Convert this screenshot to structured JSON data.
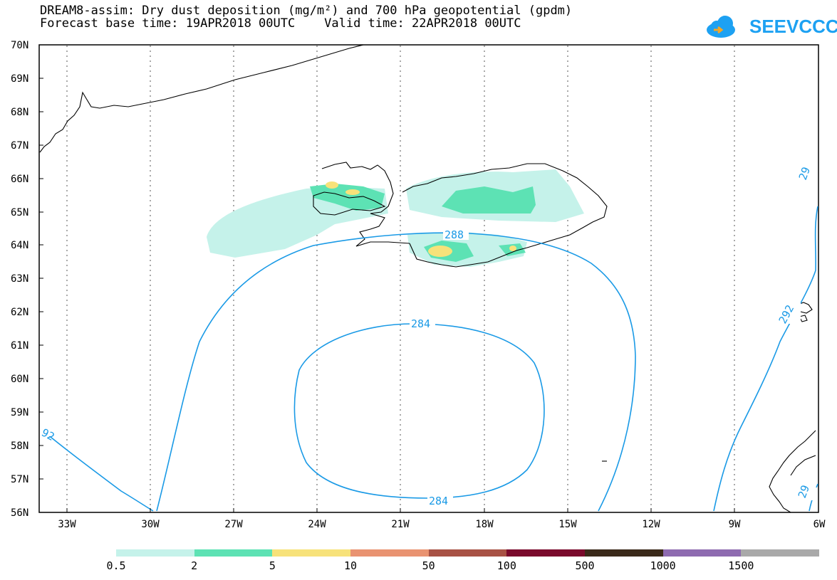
{
  "title_line1": "DREAM8-assim: Dry dust deposition (mg/m²) and 700 hPa geopotential (gpdm)",
  "title_line2": "Forecast base time: 19APR2018 00UTC    Valid time: 22APR2018 00UTC",
  "logo_text": "SEEVCCC",
  "lat_labels": [
    "70N",
    "69N",
    "68N",
    "67N",
    "66N",
    "65N",
    "64N",
    "63N",
    "62N",
    "61N",
    "60N",
    "59N",
    "58N",
    "57N",
    "56N"
  ],
  "lon_labels": [
    "33W",
    "30W",
    "27W",
    "24W",
    "21W",
    "18W",
    "15W",
    "12W",
    "9W",
    "6W"
  ],
  "contour_labels": {
    "c288": "288",
    "c284_top": "284",
    "c284_bottom": "284",
    "c292_left": "92",
    "c292_right_top": "29",
    "c292_right_mid": "292",
    "c292_right_low": "29"
  },
  "legend": {
    "colors": [
      "#c5f2ea",
      "#5de2b4",
      "#f7e27a",
      "#e99371",
      "#a85245",
      "#7a0a2c",
      "#3b2a1a",
      "#8e6bb0",
      "#a9a9a9"
    ],
    "labels": [
      "0.5",
      "2",
      "5",
      "10",
      "50",
      "100",
      "500",
      "1000",
      "1500"
    ]
  },
  "contour_color": "#1a9ae6"
}
